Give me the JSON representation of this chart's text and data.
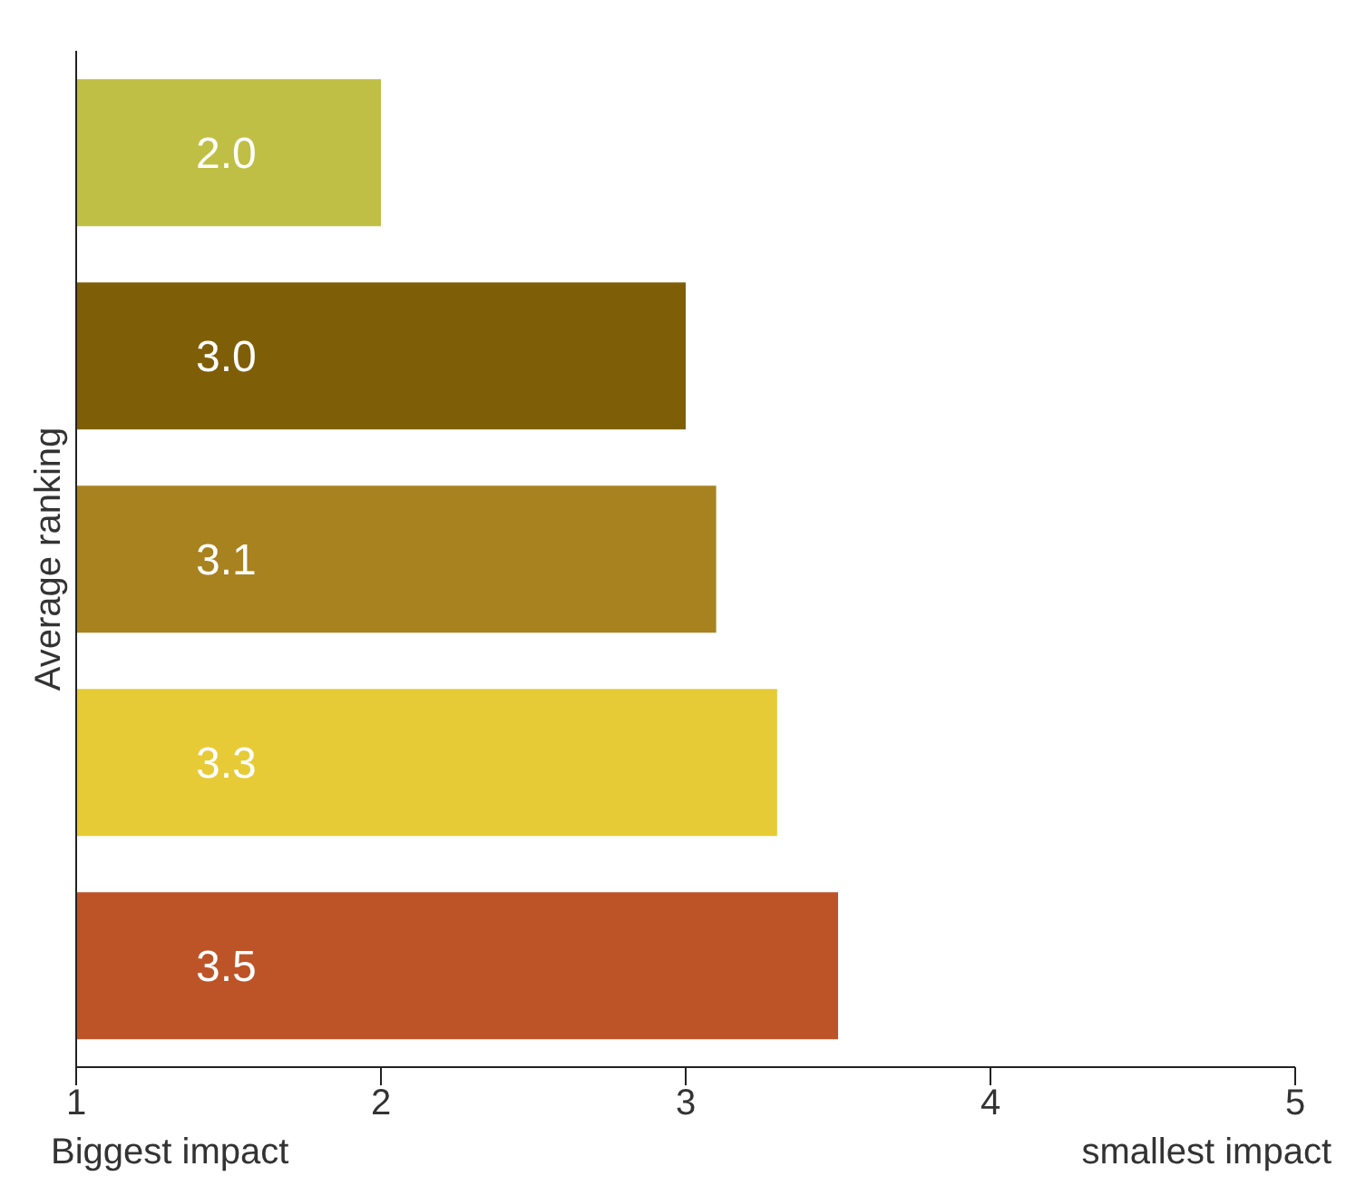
{
  "chart_data": {
    "type": "bar",
    "orientation": "horizontal",
    "ylabel": "Average ranking",
    "categories": [
      null,
      null,
      null,
      null,
      null
    ],
    "values": [
      2.0,
      3.0,
      3.1,
      3.3,
      3.5
    ],
    "colors": [
      "#bfbf45",
      "#7f5e08",
      "#a8821f",
      "#e6cb36",
      "#bd5427"
    ],
    "value_labels": [
      "2.0",
      "3.0",
      "3.1",
      "3.3",
      "3.5"
    ],
    "xlim": [
      1,
      5
    ],
    "xticks": [
      1,
      2,
      3,
      4,
      5
    ],
    "tick_labels": "x",
    "annotations": [
      "Biggest impact",
      "smallest impact"
    ]
  }
}
